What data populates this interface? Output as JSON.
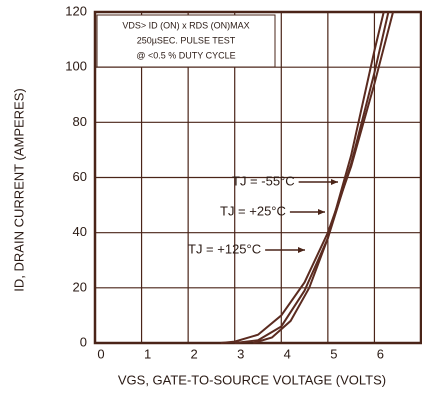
{
  "chart_data": {
    "type": "line",
    "xlabel": "VGS, GATE-TO-SOURCE VOLTAGE (VOLTS)",
    "ylabel": "ID, DRAIN CURRENT (AMPERES)",
    "annotation": [
      "VDS> ID (ON) x RDS (ON)MAX",
      "250µSEC. PULSE TEST",
      "@ <0.5 % DUTY CYCLE"
    ],
    "xlim": [
      0,
      7
    ],
    "xticks": [
      0,
      1,
      2,
      3,
      4,
      5,
      6
    ],
    "ylim": [
      0,
      120
    ],
    "yticks": [
      0,
      20,
      40,
      60,
      80,
      100,
      120
    ],
    "grid": true,
    "series": [
      {
        "name": "TJ = -55°C",
        "color": "#5b2b20",
        "x": [
          3.4,
          3.8,
          4.2,
          4.6,
          5,
          5.5,
          6,
          6.2
        ],
        "values": [
          0,
          2,
          8,
          20,
          38,
          68,
          106,
          120
        ]
      },
      {
        "name": "TJ = +25°C",
        "color": "#5b2b20",
        "x": [
          3,
          3.5,
          4,
          4.5,
          5,
          5.5,
          6,
          6.3
        ],
        "values": [
          0,
          1,
          6,
          19,
          38,
          65,
          98,
          120
        ]
      },
      {
        "name": "TJ = +125°C",
        "color": "#5b2b20",
        "x": [
          2.7,
          3,
          3.5,
          4,
          4.5,
          5,
          5.5,
          6,
          6.4
        ],
        "values": [
          0,
          0.5,
          3,
          10,
          22,
          40,
          64,
          94,
          120
        ]
      }
    ]
  }
}
